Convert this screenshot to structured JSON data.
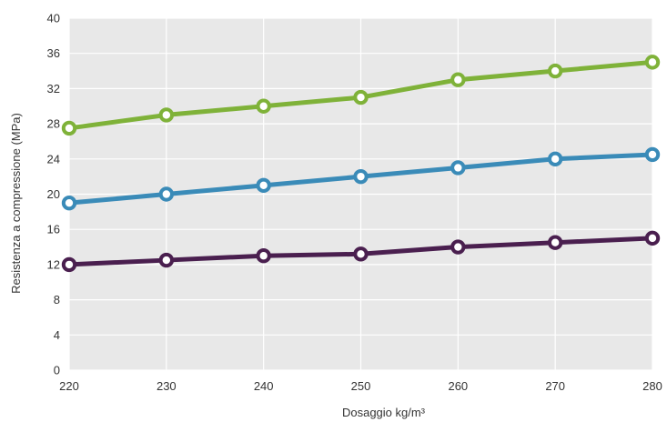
{
  "chart_data": {
    "type": "line",
    "xlabel": "Dosaggio kg/m³",
    "ylabel": "Resistenza a compressione (MPa)",
    "x": [
      220,
      230,
      240,
      250,
      260,
      270,
      280
    ],
    "xlim": [
      220,
      280
    ],
    "ylim": [
      0,
      40
    ],
    "y_ticks": [
      0,
      4,
      8,
      12,
      16,
      20,
      24,
      28,
      32,
      36,
      40
    ],
    "x_ticks": [
      220,
      230,
      240,
      250,
      260,
      270,
      280
    ],
    "grid": true,
    "legend": "none",
    "series": [
      {
        "color": "#7fb239",
        "values": [
          27.5,
          29,
          30,
          31,
          33,
          34,
          35
        ]
      },
      {
        "color": "#3a8bb8",
        "values": [
          19,
          20,
          21,
          22,
          23,
          24,
          24.5
        ]
      },
      {
        "color": "#4a1f4f",
        "values": [
          12,
          12.5,
          13,
          13.2,
          14,
          14.5,
          15
        ]
      }
    ],
    "background_color": "#e8e8e8",
    "grid_color": "#ffffff"
  }
}
